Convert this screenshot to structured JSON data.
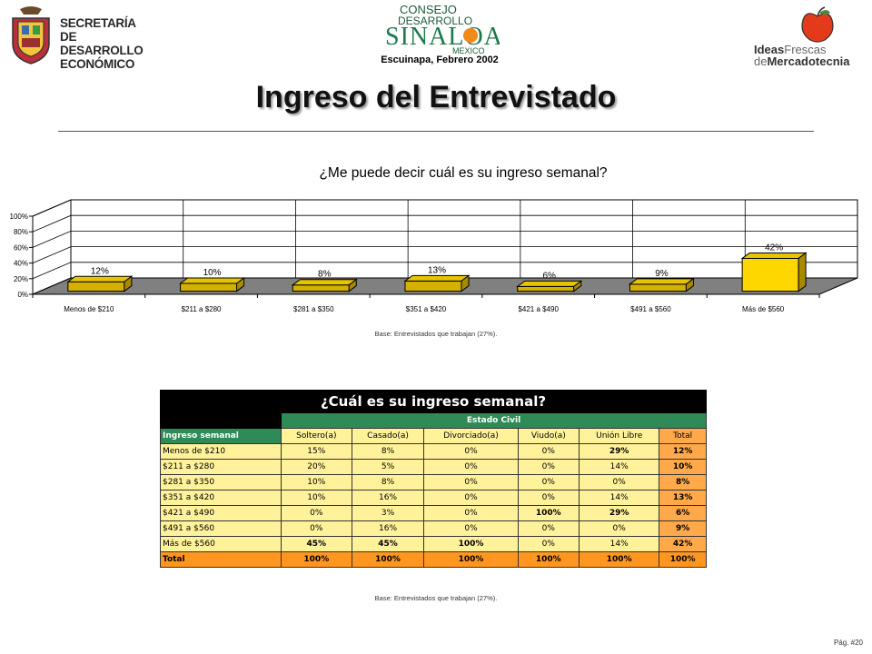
{
  "header": {
    "org_left": [
      "SECRETARÍA",
      "DE DESARROLLO",
      "ECONÓMICO"
    ],
    "center_logo": {
      "line1": "CONSEJO",
      "line2": "DESARROLLO",
      "line3": "SINALOA",
      "line4": "MEXICO"
    },
    "place_date": "Escuinapa, Febrero 2002",
    "right_logo": {
      "w1": "Ideas",
      "w2": "Frescas",
      "w3": "de",
      "w4": "Mercadotecnia"
    }
  },
  "page_title": "Ingreso del Entrevistado",
  "chart_question": "¿Me puede decir cuál es su ingreso semanal?",
  "chart_data": {
    "type": "bar",
    "title": "¿Me puede decir cuál es su ingreso semanal?",
    "categories": [
      "Menos de $210",
      "$211 a $280",
      "$281 a $350",
      "$351 a $420",
      "$421 a $490",
      "$491 a $560",
      "Más de $560"
    ],
    "values": [
      12,
      10,
      8,
      13,
      6,
      9,
      42
    ],
    "value_labels": [
      "12%",
      "10%",
      "8%",
      "13%",
      "6%",
      "9%",
      "42%"
    ],
    "y_ticks": [
      "0%",
      "20%",
      "40%",
      "60%",
      "80%",
      "100%"
    ],
    "ylim": [
      0,
      100
    ],
    "grid": true,
    "colors": {
      "bar_normal": "#d4b000",
      "bar_last": "#ffd700",
      "floor": "#808080"
    }
  },
  "chart_base_note": "Base: Entrevistados que trabajan (27%).",
  "table": {
    "title": "¿Cuál es su ingreso semanal?",
    "group_header": "Estado Civil",
    "row_header": "Ingreso semanal",
    "columns": [
      "Soltero(a)",
      "Casado(a)",
      "Divorciado(a)",
      "Viudo(a)",
      "Unión Libre",
      "Total"
    ],
    "rows": [
      {
        "label": "Menos de $210",
        "cells": [
          "15%",
          "8%",
          "0%",
          "0%",
          "29%",
          "12%"
        ]
      },
      {
        "label": "$211 a $280",
        "cells": [
          "20%",
          "5%",
          "0%",
          "0%",
          "14%",
          "10%"
        ]
      },
      {
        "label": "$281 a $350",
        "cells": [
          "10%",
          "8%",
          "0%",
          "0%",
          "0%",
          "8%"
        ]
      },
      {
        "label": "$351 a $420",
        "cells": [
          "10%",
          "16%",
          "0%",
          "0%",
          "14%",
          "13%"
        ]
      },
      {
        "label": "$421 a $490",
        "cells": [
          "0%",
          "3%",
          "0%",
          "100%",
          "29%",
          "6%"
        ]
      },
      {
        "label": "$491 a $560",
        "cells": [
          "0%",
          "16%",
          "0%",
          "0%",
          "0%",
          "9%"
        ]
      },
      {
        "label": "Más de $560",
        "cells": [
          "45%",
          "45%",
          "100%",
          "0%",
          "14%",
          "42%"
        ]
      }
    ],
    "total_row": {
      "label": "Total",
      "cells": [
        "100%",
        "100%",
        "100%",
        "100%",
        "100%",
        "100%"
      ]
    },
    "bold_cells": [
      [
        0,
        4
      ],
      [
        4,
        3
      ],
      [
        4,
        4
      ],
      [
        6,
        0
      ],
      [
        6,
        1
      ],
      [
        6,
        2
      ]
    ]
  },
  "table_base_note": "Base: Entrevistados que trabajan (27%).",
  "page_number": "Pág. #20"
}
